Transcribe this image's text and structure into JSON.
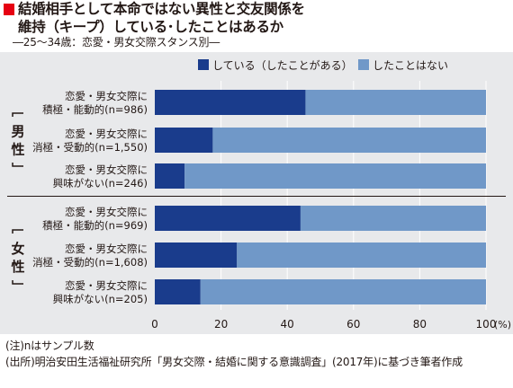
{
  "title": {
    "line1": "結婚相手として本命ではない異性と交友関係を",
    "line2": "維持（キープ）している･したことはあるか",
    "subtitle": "―25～34歳：恋愛・男女交際スタンス別―"
  },
  "notes": {
    "note": "(注)nはサンプル数",
    "source": "(出所)明治安田生活福祉研究所「男女交際・結婚に関する意識調査」(2017年)に基づき筆者作成"
  },
  "colors": {
    "has_kept": "#1a3c8c",
    "never": "#7098c8",
    "panel_bg": "#e8e9eb",
    "title_mark": "#e60012"
  },
  "chart_data": {
    "type": "bar",
    "orientation": "horizontal",
    "stacked": true,
    "legend_position": "top-right",
    "xlim": [
      0,
      100
    ],
    "x_ticks": [
      "0",
      "20",
      "40",
      "60",
      "80",
      "100"
    ],
    "x_unit": "(%)",
    "groups": [
      {
        "label": "男性",
        "start": 0,
        "count": 3
      },
      {
        "label": "女性",
        "start": 3,
        "count": 3
      }
    ],
    "categories": [
      [
        "恋愛・男女交際に",
        "積極・能動的(n=986)"
      ],
      [
        "恋愛・男女交際に",
        "消極・受動的(n=1,550)"
      ],
      [
        "恋愛・男女交際に",
        "興味がない(n=246)"
      ],
      [
        "恋愛・男女交際に",
        "積極・能動的(n=969)"
      ],
      [
        "恋愛・男女交際に",
        "消極・受動的(n=1,608)"
      ],
      [
        "恋愛・男女交際に",
        "興味がない(n=205)"
      ]
    ],
    "series": [
      {
        "name": "している（したことがある）",
        "values": [
          45.5,
          17.5,
          9,
          44,
          24.8,
          13.8
        ]
      },
      {
        "name": "したことはない",
        "values": [
          54.5,
          82.5,
          91,
          56,
          75.2,
          86.2
        ]
      }
    ]
  }
}
